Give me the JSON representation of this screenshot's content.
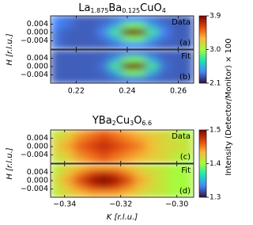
{
  "colorbar_label": "Intensity (Detector/Monitor) × 100",
  "chart_data": [
    {
      "type": "heatmap",
      "title": "La1.875Ba0.125CuO4",
      "ylabel": "H [r.l.u.]",
      "xlim": [
        0.21,
        0.266
      ],
      "ylim": [
        -0.008,
        0.008
      ],
      "xticks": [
        0.22,
        0.24,
        0.26
      ],
      "yticks": [
        0.004,
        {
          "value": 0,
          "label": "0.000"
        },
        {
          "value": -0.004,
          "label": "−0.004"
        }
      ],
      "clim": [
        2.1,
        3.9
      ],
      "cticks": [
        2.1,
        {
          "value": 3,
          "label": "3.0"
        },
        3.9
      ],
      "colormap": [
        "#30123b",
        "#4686fb",
        "#1be5b5",
        "#a4fc3c",
        "#fbb938",
        "#e4460a",
        "#7a0403"
      ],
      "panels": [
        {
          "label": "Data",
          "tag": "(a)",
          "z": [
            [
              2.4,
              2.35,
              2.3,
              2.3,
              2.3,
              2.35,
              2.4,
              2.4,
              2.35,
              2.3,
              2.3,
              2.3
            ],
            [
              2.4,
              2.35,
              2.3,
              2.3,
              2.35,
              2.5,
              2.9,
              2.9,
              2.5,
              2.35,
              2.3,
              2.3
            ],
            [
              2.35,
              2.3,
              2.3,
              2.3,
              2.4,
              2.8,
              3.9,
              3.9,
              2.8,
              2.4,
              2.3,
              2.3
            ],
            [
              2.35,
              2.3,
              2.3,
              2.3,
              2.35,
              2.5,
              2.9,
              2.9,
              2.5,
              2.35,
              2.3,
              2.3
            ],
            [
              2.35,
              2.3,
              2.3,
              2.3,
              2.3,
              2.35,
              2.4,
              2.4,
              2.35,
              2.3,
              2.3,
              2.3
            ]
          ]
        },
        {
          "label": "Fit",
          "tag": "(b)",
          "z": [
            [
              2.3,
              2.3,
              2.3,
              2.3,
              2.3,
              2.32,
              2.35,
              2.35,
              2.32,
              2.3,
              2.3,
              2.3
            ],
            [
              2.3,
              2.3,
              2.3,
              2.3,
              2.32,
              2.5,
              2.9,
              2.9,
              2.5,
              2.32,
              2.3,
              2.3
            ],
            [
              2.3,
              2.3,
              2.3,
              2.3,
              2.35,
              2.8,
              3.9,
              3.9,
              2.8,
              2.35,
              2.3,
              2.3
            ],
            [
              2.3,
              2.3,
              2.3,
              2.3,
              2.32,
              2.5,
              2.9,
              2.9,
              2.5,
              2.32,
              2.3,
              2.3
            ],
            [
              2.3,
              2.3,
              2.3,
              2.3,
              2.3,
              2.32,
              2.35,
              2.35,
              2.32,
              2.3,
              2.3,
              2.3
            ]
          ]
        }
      ]
    },
    {
      "type": "heatmap",
      "title": "YBa2Cu3O6.6",
      "ylabel": "H [r.l.u.]",
      "xlabel": "K [r.l.u.]",
      "xlim": [
        -0.345,
        -0.294
      ],
      "ylim": [
        -0.008,
        0.008
      ],
      "xticks": [
        {
          "value": -0.34,
          "label": "−0.34"
        },
        {
          "value": -0.32,
          "label": "−0.32"
        },
        {
          "value": -0.3,
          "label": "−0.30"
        }
      ],
      "yticks": [
        0.004,
        {
          "value": 0,
          "label": "0.000"
        },
        {
          "value": -0.004,
          "label": "−0.004"
        }
      ],
      "clim": [
        1.3,
        1.5
      ],
      "cticks": [
        1.3,
        1.4,
        1.5
      ],
      "colormap": [
        "#30123b",
        "#4686fb",
        "#1be5b5",
        "#a4fc3c",
        "#fbb938",
        "#e4460a",
        "#7a0403"
      ],
      "panels": [
        {
          "label": "Data",
          "tag": "(c)",
          "z": [
            [
              1.41,
              1.42,
              1.44,
              1.45,
              1.46,
              1.45,
              1.44,
              1.43,
              1.42,
              1.42,
              1.41,
              1.4
            ],
            [
              1.42,
              1.43,
              1.45,
              1.46,
              1.47,
              1.46,
              1.45,
              1.44,
              1.43,
              1.42,
              1.41,
              1.41
            ],
            [
              1.42,
              1.44,
              1.46,
              1.47,
              1.48,
              1.47,
              1.46,
              1.45,
              1.43,
              1.42,
              1.42,
              1.41
            ],
            [
              1.42,
              1.43,
              1.45,
              1.46,
              1.47,
              1.46,
              1.45,
              1.44,
              1.43,
              1.42,
              1.41,
              1.41
            ],
            [
              1.41,
              1.42,
              1.44,
              1.45,
              1.46,
              1.45,
              1.44,
              1.43,
              1.42,
              1.42,
              1.41,
              1.4
            ]
          ]
        },
        {
          "label": "Fit",
          "tag": "(d)",
          "z": [
            [
              1.41,
              1.42,
              1.43,
              1.44,
              1.44,
              1.44,
              1.43,
              1.42,
              1.41,
              1.41,
              1.4,
              1.4
            ],
            [
              1.41,
              1.43,
              1.45,
              1.47,
              1.48,
              1.47,
              1.45,
              1.43,
              1.42,
              1.41,
              1.4,
              1.4
            ],
            [
              1.42,
              1.44,
              1.47,
              1.49,
              1.5,
              1.49,
              1.47,
              1.44,
              1.42,
              1.41,
              1.4,
              1.4
            ],
            [
              1.41,
              1.43,
              1.45,
              1.47,
              1.48,
              1.47,
              1.45,
              1.43,
              1.42,
              1.41,
              1.4,
              1.4
            ],
            [
              1.41,
              1.42,
              1.43,
              1.44,
              1.44,
              1.44,
              1.43,
              1.42,
              1.41,
              1.41,
              1.4,
              1.4
            ]
          ]
        }
      ]
    }
  ]
}
